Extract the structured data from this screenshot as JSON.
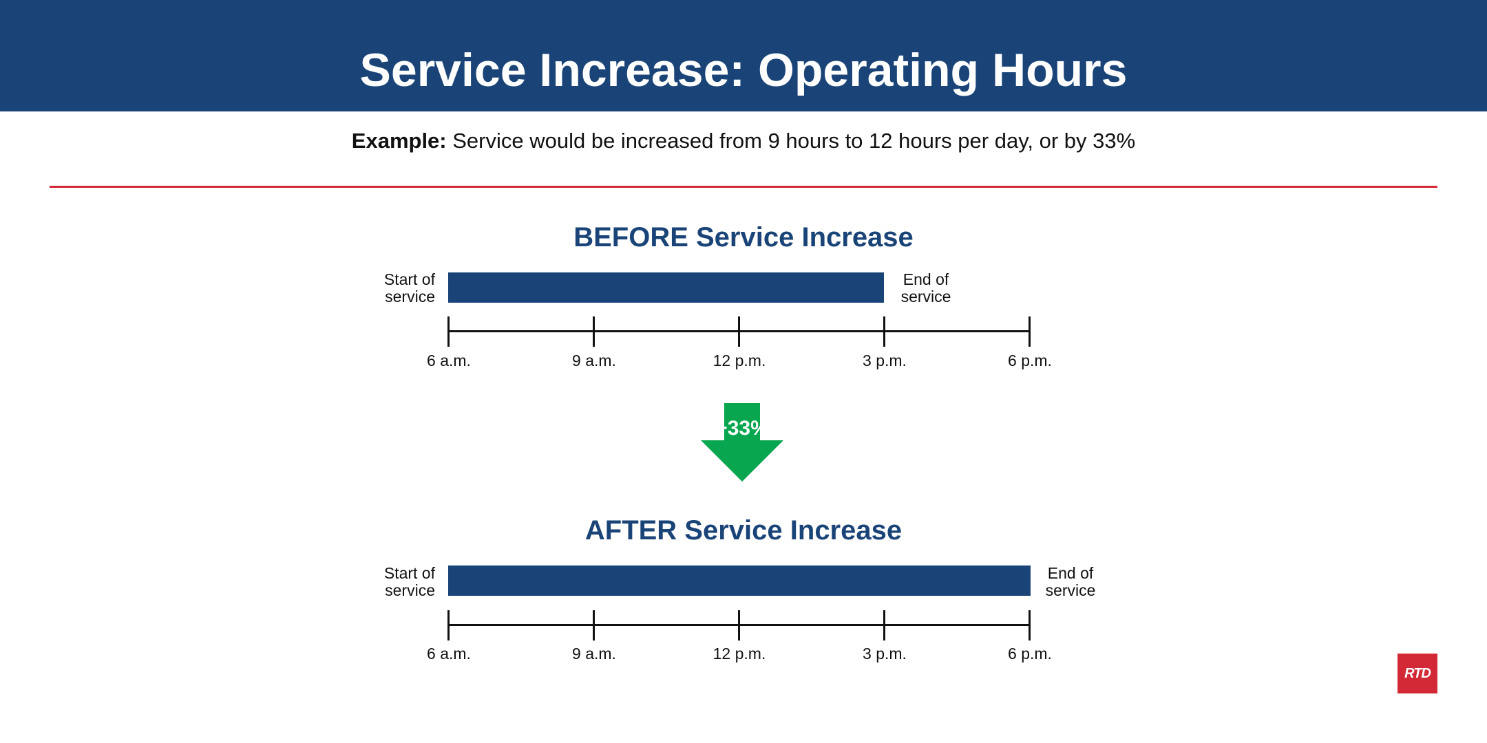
{
  "header": {
    "title": "Service Increase: Operating Hours"
  },
  "example": {
    "lead": "Example:",
    "text": " Service would be increased from 9 hours to 12 hours per day, or by 33%"
  },
  "colors": {
    "brand_navy": "#1a4478",
    "accent_red": "#d32836",
    "increase_green": "#08a64f"
  },
  "before": {
    "title": "BEFORE Service Increase",
    "start_label": [
      "Start of",
      "service"
    ],
    "end_label": [
      "End of",
      "service"
    ],
    "service_start": "6 a.m.",
    "service_end": "3 p.m.",
    "service_hours": 9,
    "axis_ticks": [
      "6 a.m.",
      "9 a.m.",
      "12 p.m.",
      "3 p.m.",
      "6 p.m."
    ]
  },
  "change": {
    "label": "+33%",
    "icon": "down-arrow-icon"
  },
  "after": {
    "title": "AFTER Service Increase",
    "start_label": [
      "Start of",
      "service"
    ],
    "end_label": [
      "End of",
      "service"
    ],
    "service_start": "6 a.m.",
    "service_end": "6 p.m.",
    "service_hours": 12,
    "axis_ticks": [
      "6 a.m.",
      "9 a.m.",
      "12 p.m.",
      "3 p.m.",
      "6 p.m."
    ]
  },
  "logo": {
    "text": "RTD"
  }
}
